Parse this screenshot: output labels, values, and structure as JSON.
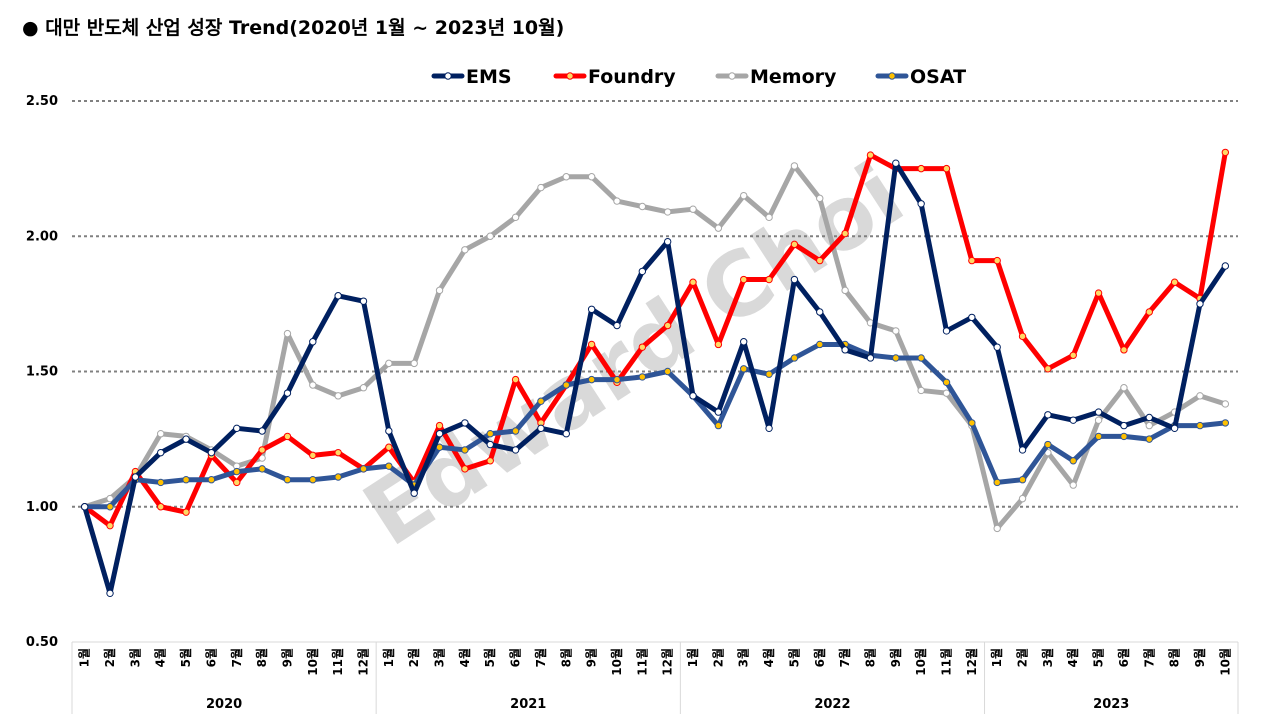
{
  "chart_data": {
    "type": "line",
    "title": "● 대만 반도체 산업 성장 Trend(2020년 1월 ~ 2023년 10월)",
    "watermark": "Edward Choi",
    "ylim": [
      0.5,
      2.5
    ],
    "yticks": [
      "0.50",
      "1.00",
      "1.50",
      "2.00",
      "2.50"
    ],
    "grid_values": [
      1.0,
      1.5,
      2.0,
      2.5
    ],
    "grid": "dotted horizontal",
    "legend_position": "top-center",
    "years": [
      {
        "label": "2020",
        "months": 12
      },
      {
        "label": "2021",
        "months": 12
      },
      {
        "label": "2022",
        "months": 12
      },
      {
        "label": "2023",
        "months": 10
      }
    ],
    "month_labels": [
      "1월",
      "2월",
      "3월",
      "4월",
      "5월",
      "6월",
      "7월",
      "8월",
      "9월",
      "10월",
      "11월",
      "12월",
      "1월",
      "2월",
      "3월",
      "4월",
      "5월",
      "6월",
      "7월",
      "8월",
      "9월",
      "10월",
      "11월",
      "12월",
      "1월",
      "2월",
      "3월",
      "4월",
      "5월",
      "6월",
      "7월",
      "8월",
      "9월",
      "10월",
      "11월",
      "12월",
      "1월",
      "2월",
      "3월",
      "4월",
      "5월",
      "6월",
      "7월",
      "8월",
      "9월",
      "10월"
    ],
    "series": [
      {
        "name": "Memory",
        "color": "#a6a6a6",
        "marker_color": "#ffffff",
        "values": [
          1.0,
          1.03,
          1.11,
          1.27,
          1.26,
          1.21,
          1.15,
          1.18,
          1.64,
          1.45,
          1.41,
          1.44,
          1.53,
          1.53,
          1.8,
          1.95,
          2.0,
          2.07,
          2.18,
          2.22,
          2.22,
          2.13,
          2.11,
          2.09,
          2.1,
          2.03,
          2.15,
          2.07,
          2.26,
          2.14,
          1.8,
          1.68,
          1.65,
          1.43,
          1.42,
          1.3,
          0.92,
          1.03,
          1.2,
          1.08,
          1.32,
          1.44,
          1.3,
          1.35,
          1.41,
          1.38
        ]
      },
      {
        "name": "Foundry",
        "color": "#ff0000",
        "marker_color": "#ffd966",
        "values": [
          1.0,
          0.93,
          1.13,
          1.0,
          0.98,
          1.19,
          1.09,
          1.21,
          1.26,
          1.19,
          1.2,
          1.14,
          1.22,
          1.09,
          1.3,
          1.14,
          1.17,
          1.47,
          1.31,
          1.45,
          1.6,
          1.46,
          1.59,
          1.67,
          1.83,
          1.6,
          1.84,
          1.84,
          1.97,
          1.91,
          2.01,
          2.3,
          2.25,
          2.25,
          2.25,
          1.91,
          1.91,
          1.63,
          1.51,
          1.56,
          1.79,
          1.58,
          1.72,
          1.83,
          1.77,
          2.31
        ]
      },
      {
        "name": "OSAT",
        "color": "#2f5597",
        "marker_color": "#ffc000",
        "values": [
          1.0,
          1.0,
          1.1,
          1.09,
          1.1,
          1.1,
          1.13,
          1.14,
          1.1,
          1.1,
          1.11,
          1.14,
          1.15,
          1.08,
          1.22,
          1.21,
          1.27,
          1.28,
          1.39,
          1.45,
          1.47,
          1.47,
          1.48,
          1.5,
          1.41,
          1.3,
          1.51,
          1.49,
          1.55,
          1.6,
          1.6,
          1.56,
          1.55,
          1.55,
          1.46,
          1.31,
          1.09,
          1.1,
          1.23,
          1.17,
          1.26,
          1.26,
          1.25,
          1.3,
          1.3,
          1.31
        ]
      },
      {
        "name": "EMS",
        "color": "#002060",
        "marker_color": "#ffffff",
        "values": [
          1.0,
          0.68,
          1.11,
          1.2,
          1.25,
          1.2,
          1.29,
          1.28,
          1.42,
          1.61,
          1.78,
          1.76,
          1.28,
          1.05,
          1.27,
          1.31,
          1.23,
          1.21,
          1.29,
          1.27,
          1.73,
          1.67,
          1.87,
          1.98,
          1.41,
          1.35,
          1.61,
          1.29,
          1.84,
          1.72,
          1.58,
          1.55,
          2.27,
          2.12,
          1.65,
          1.7,
          1.59,
          1.21,
          1.34,
          1.32,
          1.35,
          1.3,
          1.33,
          1.29,
          1.75,
          1.89
        ]
      }
    ],
    "legend_order": [
      "EMS",
      "Foundry",
      "Memory",
      "OSAT"
    ]
  }
}
